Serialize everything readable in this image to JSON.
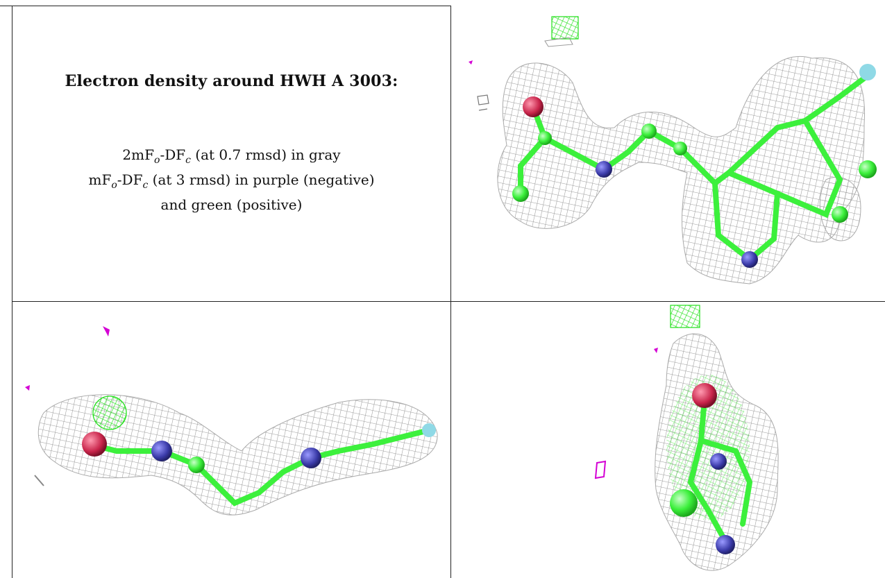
{
  "header": {
    "title": "Electron density around HWH A 3003:"
  },
  "legend": {
    "line1": {
      "prefix": "2mF",
      "sub1": "o",
      "middle": "-DF",
      "sub2": "c",
      "suffix": " (at 0.7 rmsd) in gray"
    },
    "line2": {
      "prefix": "mF",
      "sub1": "o",
      "middle": "-DF",
      "sub2": "c",
      "suffix": " (at 3 rmsd) in purple (negative)"
    },
    "line3": "and green (positive)"
  },
  "colors": {
    "mesh_2fofc": "#9a9a9a",
    "mesh_negative": "#d400d4",
    "mesh_positive": "#22e01a",
    "carbon": "#3cf03c",
    "nitrogen": "#3a3aa8",
    "oxygen": "#c8244a",
    "sulfur_or_other": "#8fd9e6"
  },
  "panels": [
    {
      "id": "view-top-right",
      "icon": "molecule-density-view-1"
    },
    {
      "id": "view-bottom-left",
      "icon": "molecule-density-view-2"
    },
    {
      "id": "view-bottom-right",
      "icon": "molecule-density-view-3"
    }
  ]
}
